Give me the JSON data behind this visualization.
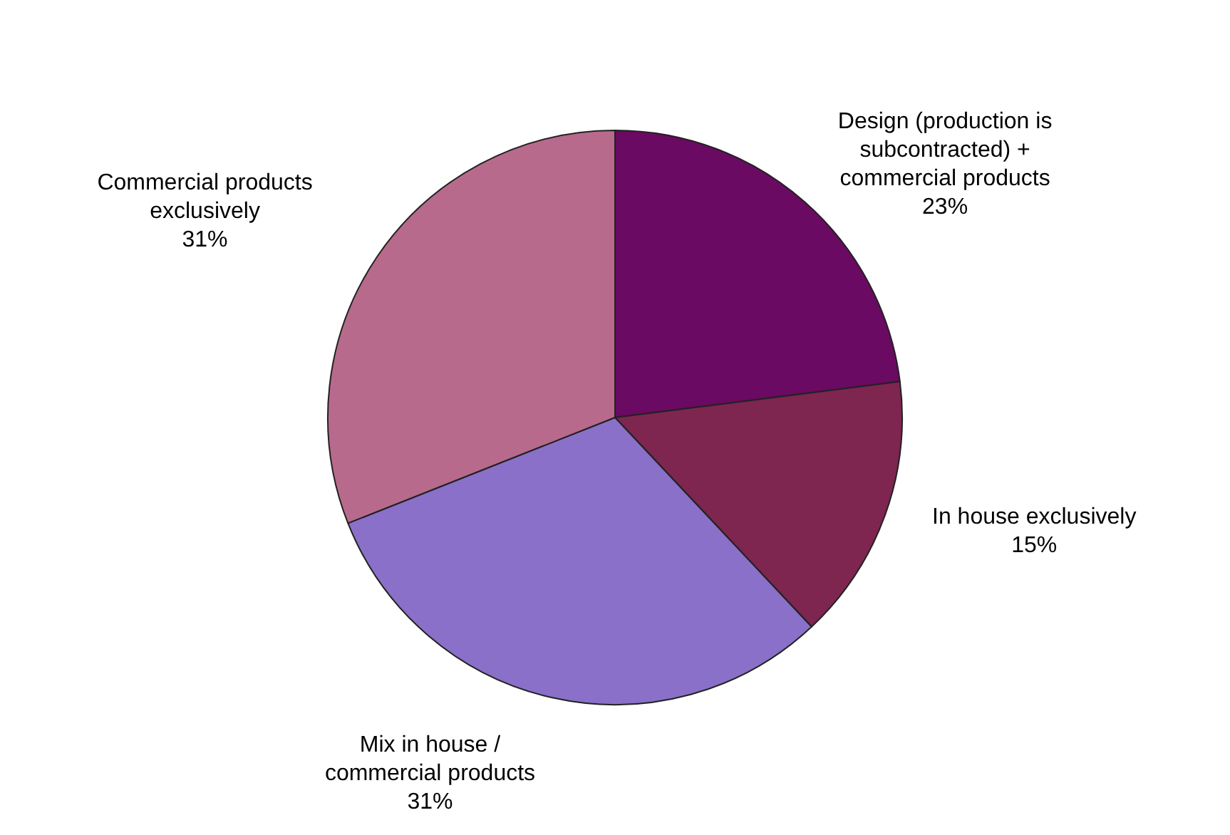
{
  "chart_data": {
    "type": "pie",
    "categories": [
      "Design (production is subcontracted) + commercial products",
      "In house exclusively",
      "Mix in house / commercial products",
      "Commercial products exclusively"
    ],
    "values": [
      23,
      15,
      31,
      31
    ],
    "value_labels": [
      "23%",
      "15%",
      "31%",
      "31%"
    ],
    "colors": [
      "#6a0a62",
      "#7e2550",
      "#8a70c8",
      "#b86a8c"
    ],
    "legend": false
  }
}
